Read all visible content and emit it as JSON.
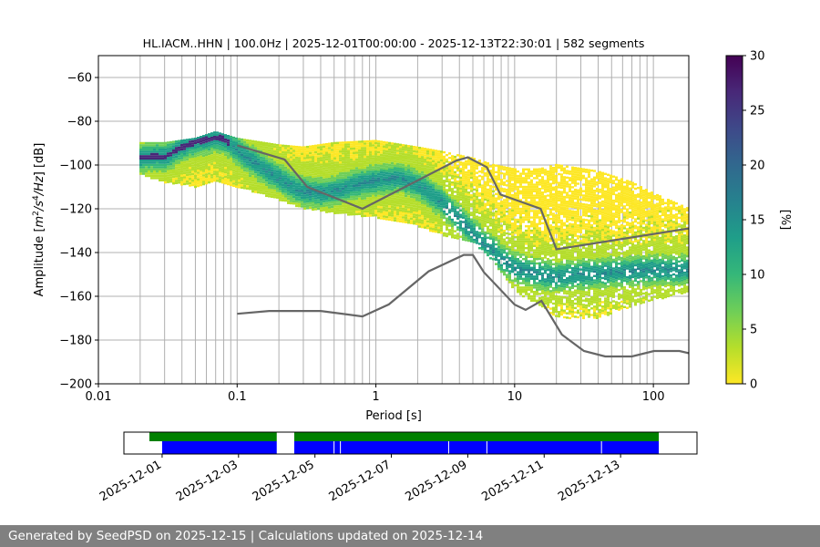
{
  "chart_data": {
    "type": "heatmap",
    "title": "HL.IACM..HHN | 100.0Hz | 2025-12-01T00:00:00 - 2025-12-13T22:30:01 | 582 segments",
    "xlabel": "Period [s]",
    "ylabel": "Amplitude [m²/s⁴/Hz] [dB]",
    "xscale": "log",
    "xlim": [
      0.01,
      180
    ],
    "ylim": [
      -200,
      -50
    ],
    "xticks": [
      {
        "value": 0.01,
        "label": "0.01"
      },
      {
        "value": 0.1,
        "label": "0.1"
      },
      {
        "value": 1,
        "label": "1"
      },
      {
        "value": 10,
        "label": "10"
      },
      {
        "value": 100,
        "label": "100"
      }
    ],
    "yticks": [
      -200,
      -180,
      -160,
      -140,
      -120,
      -100,
      -80,
      -60
    ],
    "ytick_labels": [
      "−200",
      "−180",
      "−160",
      "−140",
      "−120",
      "−100",
      "−80",
      "−60"
    ],
    "vertical_grid_periods": [
      0.02,
      0.03,
      0.04,
      0.05,
      0.06,
      0.07,
      0.08,
      0.09,
      0.1,
      0.2,
      0.3,
      0.4,
      0.5,
      0.6,
      0.7,
      0.8,
      0.9,
      1,
      2,
      3,
      4,
      5,
      6,
      7,
      8,
      9,
      10,
      20,
      30,
      40,
      50,
      60,
      70,
      80,
      90,
      100
    ],
    "horizontal_grid_levels": [
      -180,
      -160,
      -140,
      -120,
      -100,
      -80,
      -60
    ],
    "colorbar": {
      "label": "[%]",
      "min": 0,
      "max": 30,
      "ticks": [
        0,
        5,
        10,
        15,
        20,
        25,
        30
      ],
      "colormap": [
        "#fde725",
        "#b5de2b",
        "#6ece58",
        "#35b779",
        "#1f9e89",
        "#26828e",
        "#31688e",
        "#3e4989",
        "#482878",
        "#440154"
      ]
    },
    "ppsd_mode_curve": [
      [
        0.019,
        -97
      ],
      [
        0.025,
        -96
      ],
      [
        0.03,
        -96.5
      ],
      [
        0.035,
        -94
      ],
      [
        0.04,
        -92
      ],
      [
        0.05,
        -89.5
      ],
      [
        0.06,
        -88.5
      ],
      [
        0.07,
        -87.5
      ],
      [
        0.08,
        -88
      ],
      [
        0.09,
        -90.5
      ],
      [
        0.1,
        -93
      ],
      [
        0.12,
        -97
      ],
      [
        0.15,
        -101
      ],
      [
        0.2,
        -106
      ],
      [
        0.25,
        -110
      ],
      [
        0.3,
        -112
      ],
      [
        0.4,
        -113
      ],
      [
        0.5,
        -112
      ],
      [
        0.7,
        -109
      ],
      [
        1,
        -107
      ],
      [
        1.5,
        -106
      ],
      [
        2,
        -109
      ],
      [
        3,
        -117
      ],
      [
        4,
        -125
      ],
      [
        5,
        -131
      ],
      [
        6,
        -136
      ],
      [
        7,
        -139
      ],
      [
        8,
        -143
      ],
      [
        10,
        -147
      ],
      [
        15,
        -150
      ],
      [
        20,
        -151
      ],
      [
        30,
        -150
      ],
      [
        50,
        -149
      ],
      [
        100,
        -148
      ],
      [
        180,
        -148
      ]
    ],
    "density_envelope": [
      [
        0.019,
        -90,
        -104
      ],
      [
        0.03,
        -90,
        -108
      ],
      [
        0.05,
        -88,
        -110
      ],
      [
        0.07,
        -85,
        -108
      ],
      [
        0.1,
        -88,
        -110
      ],
      [
        0.2,
        -91,
        -116
      ],
      [
        0.3,
        -92,
        -120
      ],
      [
        0.5,
        -90,
        -122
      ],
      [
        1,
        -89,
        -124
      ],
      [
        2,
        -92,
        -128
      ],
      [
        3,
        -94,
        -132
      ],
      [
        5,
        -97,
        -135
      ],
      [
        7,
        -100,
        -144
      ],
      [
        10,
        -102,
        -158
      ],
      [
        15,
        -102,
        -164
      ],
      [
        20,
        -100,
        -170
      ],
      [
        40,
        -103,
        -170
      ],
      [
        70,
        -108,
        -165
      ],
      [
        100,
        -113,
        -162
      ],
      [
        180,
        -120,
        -158
      ]
    ],
    "nhnm": [
      [
        0.1,
        -91
      ],
      [
        0.22,
        -97.5
      ],
      [
        0.32,
        -110
      ],
      [
        0.8,
        -120
      ],
      [
        3.8,
        -98
      ],
      [
        4.6,
        -96.5
      ],
      [
        6.3,
        -101
      ],
      [
        7.9,
        -113.5
      ],
      [
        15.4,
        -120
      ],
      [
        20,
        -138.5
      ],
      [
        180,
        -129
      ]
    ],
    "nlnm": [
      [
        0.1,
        -168
      ],
      [
        0.17,
        -166.7
      ],
      [
        0.4,
        -166.7
      ],
      [
        0.8,
        -169.2
      ],
      [
        1.24,
        -163.7
      ],
      [
        2.4,
        -148.6
      ],
      [
        4.3,
        -141.1
      ],
      [
        5,
        -141.1
      ],
      [
        6,
        -149
      ],
      [
        10,
        -163.8
      ],
      [
        12,
        -166.2
      ],
      [
        15.6,
        -162.1
      ],
      [
        21.9,
        -177.5
      ],
      [
        31.6,
        -185
      ],
      [
        45,
        -187.5
      ],
      [
        70,
        -187.5
      ],
      [
        101,
        -185
      ],
      [
        154,
        -185
      ],
      [
        180,
        -186
      ]
    ],
    "data_availability": {
      "date_ticks": [
        "2025-12-01",
        "2025-12-03",
        "2025-12-05",
        "2025-12-07",
        "2025-12-09",
        "2025-12-11",
        "2025-12-13"
      ],
      "time_start": "2025-11-30",
      "time_end": "2025-12-15",
      "green_segments": [
        [
          "2025-11-30T16:00",
          "2025-12-04T00:00"
        ],
        [
          "2025-12-04T11:00",
          "2025-12-14T00:00"
        ]
      ],
      "blue_segments": [
        [
          "2025-12-01T00:00",
          "2025-12-04T00:00"
        ],
        [
          "2025-12-04T11:00",
          "2025-12-14T00:00"
        ]
      ],
      "blue_gap_marks": [
        "2025-12-05T12:00",
        "2025-12-05T16:00",
        "2025-12-08T12:00",
        "2025-12-09T12:00",
        "2025-12-12T12:00"
      ],
      "colors": {
        "green": "#008000",
        "blue": "#0000ff"
      }
    }
  },
  "colors": {
    "curve": "#666666",
    "grid": "#b0b0b0",
    "footer_bg": "#808080",
    "mode": "#3b1b6a"
  },
  "footer": {
    "text": "Generated by SeedPSD on 2025-12-15 | Calculations updated on 2025-12-14"
  }
}
